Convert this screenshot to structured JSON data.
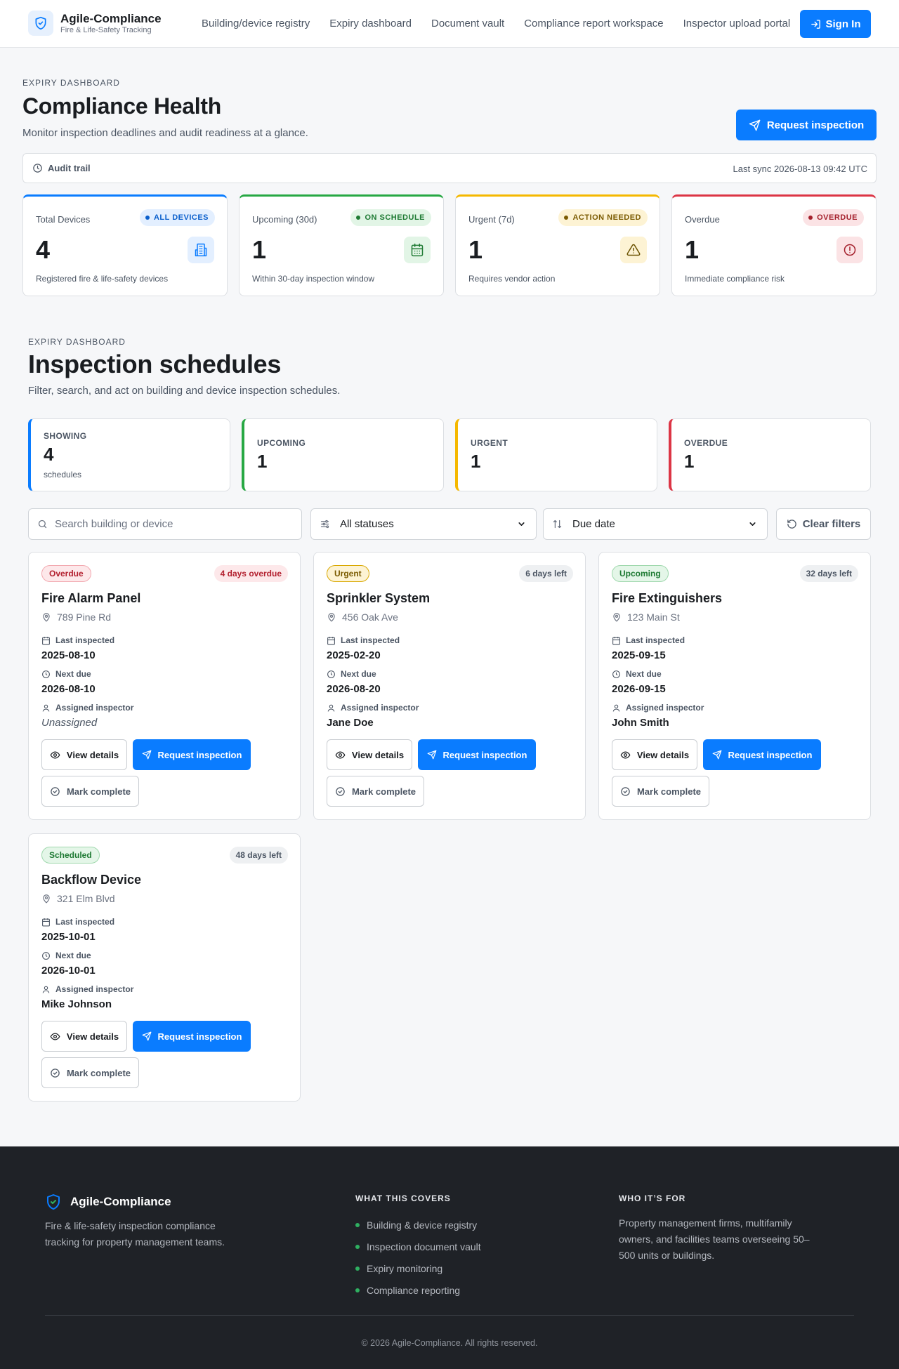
{
  "nav": {
    "brand_name": "Agile-Compliance",
    "brand_tagline": "Fire & Life-Safety Tracking",
    "links": [
      "Building/device registry",
      "Expiry dashboard",
      "Document vault",
      "Compliance report workspace",
      "Inspector upload portal"
    ],
    "sign_in": "Sign In"
  },
  "health": {
    "eyebrow": "EXPIRY DASHBOARD",
    "title": "Compliance Health",
    "subtitle": "Monitor inspection deadlines and audit readiness at a glance.",
    "request_button": "Request inspection",
    "audit_label": "Audit trail",
    "last_sync": "Last sync 2026-08-13 09:42 UTC",
    "kpis": [
      {
        "label": "Total Devices",
        "pill": "ALL DEVICES",
        "value": "4",
        "desc": "Registered fire & life-safety devices",
        "color": "#0a7cff",
        "icon": "building-icon"
      },
      {
        "label": "Upcoming (30d)",
        "pill": "ON SCHEDULE",
        "value": "1",
        "desc": "Within 30-day inspection window",
        "color": "#27a843",
        "icon": "calendar-icon"
      },
      {
        "label": "Urgent (7d)",
        "pill": "ACTION NEEDED",
        "value": "1",
        "desc": "Requires vendor action",
        "color": "#f5b800",
        "icon": "warning-icon"
      },
      {
        "label": "Overdue",
        "pill": "OVERDUE",
        "value": "1",
        "desc": "Immediate compliance risk",
        "color": "#dc3545",
        "icon": "alert-circle-icon"
      }
    ]
  },
  "schedules": {
    "eyebrow": "EXPIRY DASHBOARD",
    "title": "Inspection schedules",
    "subtitle": "Filter, search, and act on building and device inspection schedules.",
    "stats": [
      {
        "label": "SHOWING",
        "value": "4",
        "sub": "schedules",
        "color": "#0a7cff"
      },
      {
        "label": "UPCOMING",
        "value": "1",
        "color": "#27a843"
      },
      {
        "label": "URGENT",
        "value": "1",
        "color": "#f5b800"
      },
      {
        "label": "OVERDUE",
        "value": "1",
        "color": "#dc3545"
      }
    ],
    "filters": {
      "search_placeholder": "Search building or device",
      "status": "All statuses",
      "sort": "Due date",
      "clear": "Clear filters"
    },
    "labels": {
      "last_inspected": "Last inspected",
      "next_due": "Next due",
      "assigned_inspector": "Assigned inspector",
      "view_details": "View details",
      "request_inspection": "Request inspection",
      "mark_complete": "Mark complete"
    },
    "cards": [
      {
        "status": "Overdue",
        "days": "4 days overdue",
        "title": "Fire Alarm Panel",
        "address": "789 Pine Rd",
        "last_inspected": "2025-08-10",
        "next_due": "2026-08-10",
        "inspector": "Unassigned"
      },
      {
        "status": "Urgent",
        "days": "6 days left",
        "title": "Sprinkler System",
        "address": "456 Oak Ave",
        "last_inspected": "2025-02-20",
        "next_due": "2026-08-20",
        "inspector": "Jane Doe"
      },
      {
        "status": "Upcoming",
        "days": "32 days left",
        "title": "Fire Extinguishers",
        "address": "123 Main St",
        "last_inspected": "2025-09-15",
        "next_due": "2026-09-15",
        "inspector": "John Smith"
      },
      {
        "status": "Scheduled",
        "days": "48 days left",
        "title": "Backflow Device",
        "address": "321 Elm Blvd",
        "last_inspected": "2025-10-01",
        "next_due": "2026-10-01",
        "inspector": "Mike Johnson"
      }
    ]
  },
  "footer": {
    "brand": "Agile-Compliance",
    "description": "Fire & life-safety inspection compliance tracking for property management teams.",
    "covers_heading": "WHAT THIS COVERS",
    "covers": [
      "Building & device registry",
      "Inspection document vault",
      "Expiry monitoring",
      "Compliance reporting"
    ],
    "who_heading": "WHO IT’S FOR",
    "who_text": "Property management firms, multifamily owners, and facilities teams overseeing 50–500 units or buildings.",
    "copyright": "© 2026 Agile-Compliance. All rights reserved."
  }
}
